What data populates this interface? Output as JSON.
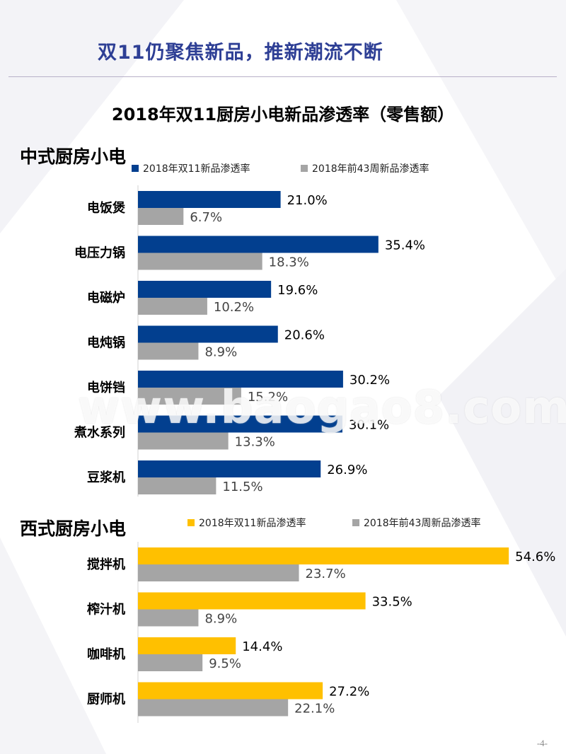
{
  "header": {
    "title": "双11仍聚焦新品，推新潮流不断"
  },
  "chart_title": "2018年双11厨房小电新品渗透率（零售额）",
  "page_number": "-4-",
  "watermark": "www.baogao8.com",
  "colors": {
    "chinese_primary": "#023F8F",
    "western_primary": "#FFC000",
    "secondary": "#A5A5A5",
    "header_text": "#2E3F95"
  },
  "chart_data": [
    {
      "type": "bar",
      "orientation": "horizontal",
      "title": "中式厨房小电",
      "categories": [
        "电饭煲",
        "电压力锅",
        "电磁炉",
        "电炖锅",
        "电饼铛",
        "煮水系列",
        "豆浆机"
      ],
      "series": [
        {
          "name": "2018年双11新品渗透率",
          "values": [
            21.0,
            35.4,
            19.6,
            20.6,
            30.2,
            30.1,
            26.9
          ],
          "labels": [
            "21.0%",
            "35.4%",
            "19.6%",
            "20.6%",
            "30.2%",
            "30.1%",
            "26.9%"
          ],
          "color": "#023F8F"
        },
        {
          "name": "2018年前43周新品渗透率",
          "values": [
            6.7,
            18.3,
            10.2,
            8.9,
            15.2,
            13.3,
            11.5
          ],
          "labels": [
            "6.7%",
            "18.3%",
            "10.2%",
            "8.9%",
            "15.2%",
            "13.3%",
            "11.5%"
          ],
          "color": "#A5A5A5"
        }
      ],
      "xlim": [
        0,
        60
      ],
      "legend": "top",
      "grid": false
    },
    {
      "type": "bar",
      "orientation": "horizontal",
      "title": "西式厨房小电",
      "categories": [
        "搅拌机",
        "榨汁机",
        "咖啡机",
        "厨师机"
      ],
      "series": [
        {
          "name": "2018年双11新品渗透率",
          "values": [
            54.6,
            33.5,
            14.4,
            27.2
          ],
          "labels": [
            "54.6%",
            "33.5%",
            "14.4%",
            "27.2%"
          ],
          "color": "#FFC000"
        },
        {
          "name": "2018年前43周新品渗透率",
          "values": [
            23.7,
            8.9,
            9.5,
            22.1
          ],
          "labels": [
            "23.7%",
            "8.9%",
            "9.5%",
            "22.1%"
          ],
          "color": "#A5A5A5"
        }
      ],
      "xlim": [
        0,
        60
      ],
      "legend": "top",
      "grid": false
    }
  ]
}
